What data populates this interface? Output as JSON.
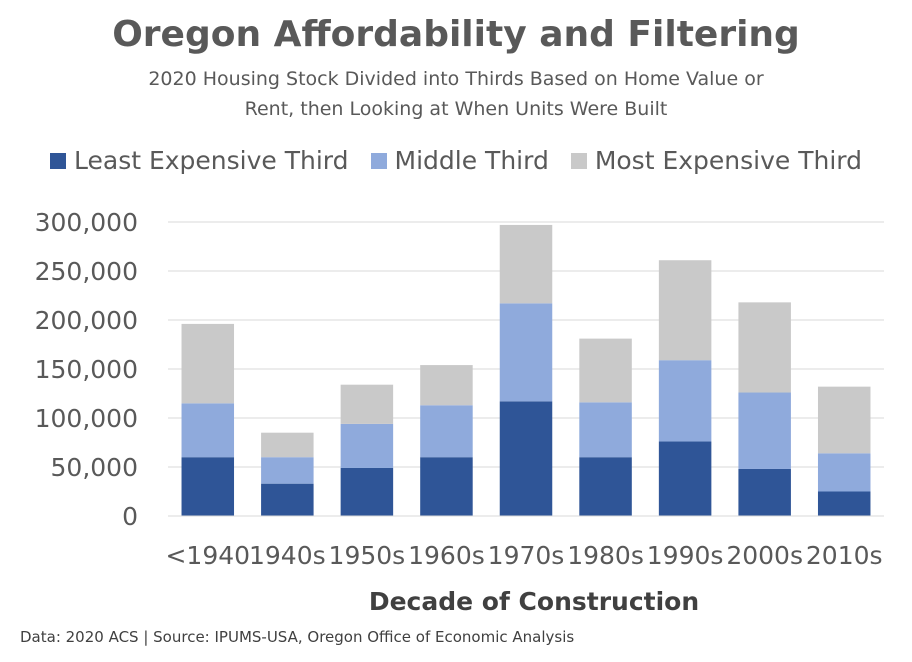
{
  "chart_data": {
    "type": "bar",
    "stacked": true,
    "title": "Oregon Affordability and Filtering",
    "subtitle": [
      "2020 Housing Stock Divided into Thirds Based on Home Value or",
      "Rent, then Looking at When Units Were Built"
    ],
    "xlabel": "Decade of Construction",
    "ylabel": "",
    "ylim": [
      0,
      300000
    ],
    "yticks": [
      0,
      50000,
      100000,
      150000,
      200000,
      250000,
      300000
    ],
    "ytick_labels": [
      "0",
      "50,000",
      "100,000",
      "150,000",
      "200,000",
      "250,000",
      "300,000"
    ],
    "grid": true,
    "legend_position": "top",
    "categories": [
      "<1940",
      "1940s",
      "1950s",
      "1960s",
      "1970s",
      "1980s",
      "1990s",
      "2000s",
      "2010s"
    ],
    "series": [
      {
        "name": "Least Expensive Third",
        "color": "#2F5597",
        "values": [
          60000,
          33000,
          49000,
          60000,
          117000,
          60000,
          76000,
          48000,
          25000
        ]
      },
      {
        "name": "Middle Third",
        "color": "#8FAADC",
        "values": [
          55000,
          27000,
          45000,
          53000,
          100000,
          56000,
          83000,
          78000,
          39000
        ]
      },
      {
        "name": "Most Expensive Third",
        "color": "#C9C9C9",
        "values": [
          81000,
          25000,
          40000,
          41000,
          80000,
          65000,
          102000,
          92000,
          68000
        ]
      }
    ]
  },
  "footnote": "Data: 2020 ACS | Source: IPUMS-USA, Oregon Office of Economic Analysis"
}
